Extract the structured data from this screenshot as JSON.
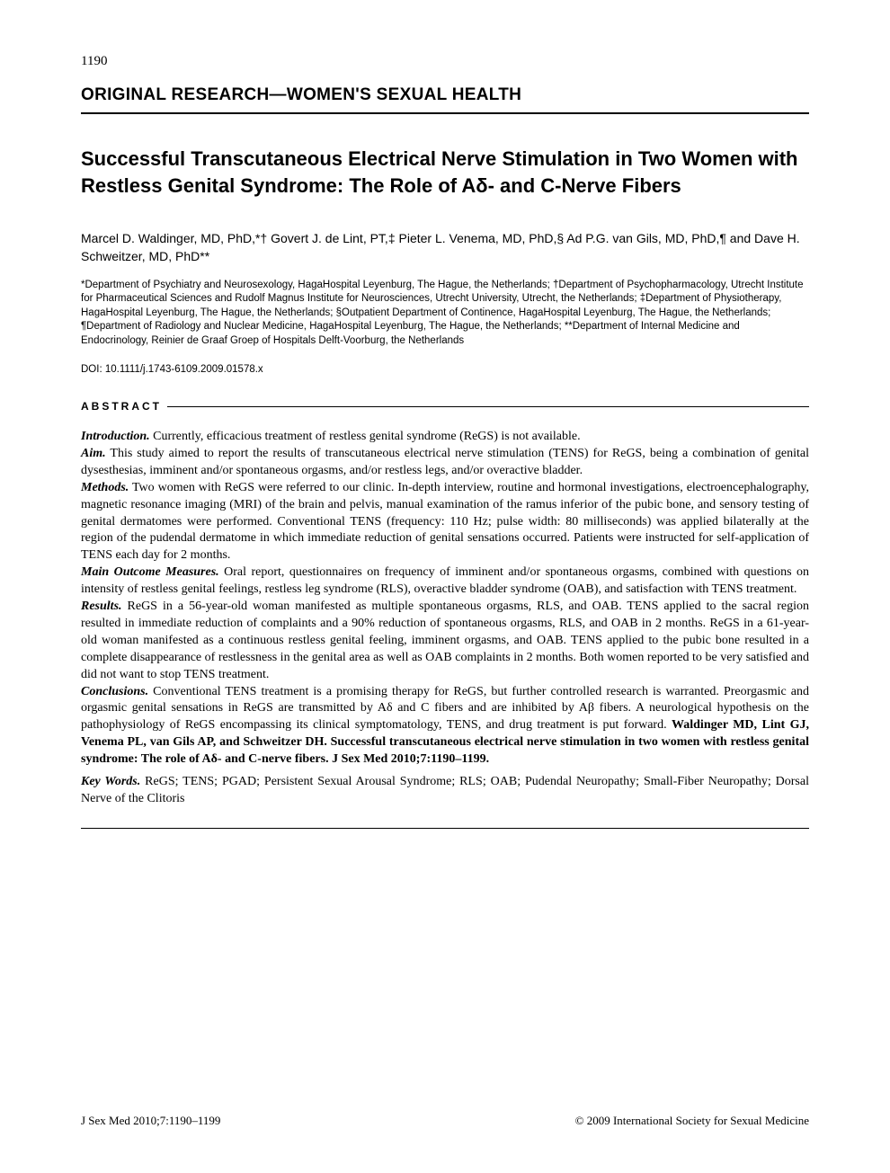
{
  "page_number": "1190",
  "section_header": "ORIGINAL RESEARCH—WOMEN'S SEXUAL HEALTH",
  "title": "Successful Transcutaneous Electrical Nerve Stimulation in Two Women with Restless Genital Syndrome: The Role of Aδ- and C-Nerve Fibers",
  "authors": "Marcel D. Waldinger, MD, PhD,*† Govert J. de Lint, PT,‡ Pieter L. Venema, MD, PhD,§ Ad P.G. van Gils, MD, PhD,¶ and Dave H. Schweitzer, MD, PhD**",
  "affiliations": "*Department of Psychiatry and Neurosexology, HagaHospital Leyenburg, The Hague, the Netherlands; †Department of Psychopharmacology, Utrecht Institute for Pharmaceutical Sciences and Rudolf Magnus Institute for Neurosciences, Utrecht University, Utrecht, the Netherlands; ‡Department of Physiotherapy, HagaHospital Leyenburg, The Hague, the Netherlands; §Outpatient Department of Continence, HagaHospital Leyenburg, The Hague, the Netherlands; ¶Department of Radiology and Nuclear Medicine, HagaHospital Leyenburg, The Hague, the Netherlands; **Department of Internal Medicine and Endocrinology, Reinier de Graaf Groep of Hospitals Delft-Voorburg, the Netherlands",
  "doi": "DOI: 10.1111/j.1743-6109.2009.01578.x",
  "abstract_heading": "ABSTRACT",
  "abstract": {
    "introduction_label": "Introduction.",
    "introduction_text": " Currently, efficacious treatment of restless genital syndrome (ReGS) is not available.",
    "aim_label": "Aim.",
    "aim_text": " This study aimed to report the results of transcutaneous electrical nerve stimulation (TENS) for ReGS, being a combination of genital dysesthesias, imminent and/or spontaneous orgasms, and/or restless legs, and/or overactive bladder.",
    "methods_label": "Methods.",
    "methods_text": " Two women with ReGS were referred to our clinic. In-depth interview, routine and hormonal investigations, electroencephalography, magnetic resonance imaging (MRI) of the brain and pelvis, manual examination of the ramus inferior of the pubic bone, and sensory testing of genital dermatomes were performed. Conventional TENS (frequency: 110 Hz; pulse width: 80 milliseconds) was applied bilaterally at the region of the pudendal dermatome in which immediate reduction of genital sensations occurred. Patients were instructed for self-application of TENS each day for 2 months.",
    "outcome_label": "Main Outcome Measures.",
    "outcome_text": " Oral report, questionnaires on frequency of imminent and/or spontaneous orgasms, combined with questions on intensity of restless genital feelings, restless leg syndrome (RLS), overactive bladder syndrome (OAB), and satisfaction with TENS treatment.",
    "results_label": "Results.",
    "results_text": " ReGS in a 56-year-old woman manifested as multiple spontaneous orgasms, RLS, and OAB. TENS applied to the sacral region resulted in immediate reduction of complaints and a 90% reduction of spontaneous orgasms, RLS, and OAB in 2 months. ReGS in a 61-year-old woman manifested as a continuous restless genital feeling, imminent orgasms, and OAB. TENS applied to the pubic bone resulted in a complete disappearance of restlessness in the genital area as well as OAB complaints in 2 months. Both women reported to be very satisfied and did not want to stop TENS treatment.",
    "conclusions_label": "Conclusions.",
    "conclusions_text": " Conventional TENS treatment is a promising therapy for ReGS, but further controlled research is warranted. Preorgasmic and orgasmic genital sensations in ReGS are transmitted by Aδ and C fibers and are inhibited by Aβ fibers. A neurological hypothesis on the pathophysiology of ReGS encompassing its clinical symptomatology, TENS, and drug treatment is put forward. ",
    "citation_bold": "Waldinger MD, Lint GJ, Venema PL, van Gils AP, and Schweitzer DH. Successful transcutaneous electrical nerve stimulation in two women with restless genital syndrome: The role of Aδ- and C-nerve fibers. J Sex Med 2010;7:1190–1199."
  },
  "keywords_label": "Key Words.",
  "keywords_text": " ReGS; TENS; PGAD; Persistent Sexual Arousal Syndrome; RLS; OAB; Pudendal Neuropathy; Small-Fiber Neuropathy; Dorsal Nerve of the Clitoris",
  "footer_left": "J Sex Med 2010;7:1190–1199",
  "footer_right": "© 2009 International Society for Sexual Medicine"
}
